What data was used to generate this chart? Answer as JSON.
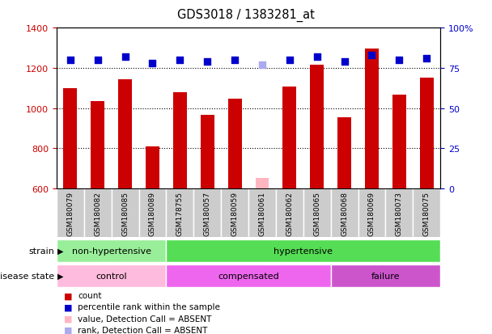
{
  "title": "GDS3018 / 1383281_at",
  "samples": [
    "GSM180079",
    "GSM180082",
    "GSM180085",
    "GSM180089",
    "GSM178755",
    "GSM180057",
    "GSM180059",
    "GSM180061",
    "GSM180062",
    "GSM180065",
    "GSM180068",
    "GSM180069",
    "GSM180073",
    "GSM180075"
  ],
  "counts": [
    1100,
    1035,
    1145,
    810,
    1080,
    965,
    1045,
    null,
    1105,
    1215,
    955,
    1295,
    1065,
    1150
  ],
  "absent_count": 650,
  "absent_count_idx": 7,
  "percentile_ranks": [
    80,
    80,
    82,
    78,
    80,
    79,
    80,
    null,
    80,
    82,
    79,
    83,
    80,
    81
  ],
  "absent_rank": 77,
  "absent_rank_idx": 7,
  "ylim_left": [
    600,
    1400
  ],
  "ylim_right": [
    0,
    100
  ],
  "yticks_left": [
    600,
    800,
    1000,
    1200,
    1400
  ],
  "yticks_right": [
    0,
    25,
    50,
    75,
    100
  ],
  "grid_values": [
    800,
    1000,
    1200
  ],
  "bar_color": "#CC0000",
  "absent_bar_color": "#FFB6C1",
  "dot_color": "#0000CC",
  "absent_dot_color": "#AAAAEE",
  "strain_groups": [
    {
      "label": "non-hypertensive",
      "start": 0,
      "end": 4,
      "color": "#99EE99"
    },
    {
      "label": "hypertensive",
      "start": 4,
      "end": 14,
      "color": "#55DD55"
    }
  ],
  "disease_groups": [
    {
      "label": "control",
      "start": 0,
      "end": 4,
      "color": "#FFBBDD"
    },
    {
      "label": "compensated",
      "start": 4,
      "end": 10,
      "color": "#EE66EE"
    },
    {
      "label": "failure",
      "start": 10,
      "end": 14,
      "color": "#CC55CC"
    }
  ],
  "strain_label": "strain",
  "disease_label": "disease state",
  "legend_items": [
    {
      "label": "count",
      "color": "#CC0000"
    },
    {
      "label": "percentile rank within the sample",
      "color": "#0000CC"
    },
    {
      "label": "value, Detection Call = ABSENT",
      "color": "#FFB6C1"
    },
    {
      "label": "rank, Detection Call = ABSENT",
      "color": "#AAAAEE"
    }
  ],
  "bar_width": 0.5,
  "dot_size": 30,
  "background_color": "#FFFFFF",
  "axis_color_left": "#CC0000",
  "axis_color_right": "#0000CC"
}
